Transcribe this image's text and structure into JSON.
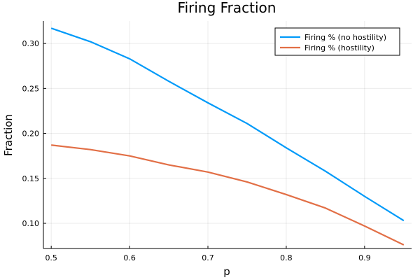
{
  "chart_data": {
    "type": "line",
    "title": "Firing Fraction",
    "xlabel": "p",
    "ylabel": "Fraction",
    "xlim": [
      0.49,
      0.96
    ],
    "ylim": [
      0.072,
      0.325
    ],
    "xticks": [
      0.5,
      0.6,
      0.7,
      0.8,
      0.9
    ],
    "xtick_labels": [
      "0.5",
      "0.6",
      "0.7",
      "0.8",
      "0.9"
    ],
    "yticks": [
      0.1,
      0.15,
      0.2,
      0.25,
      0.3
    ],
    "ytick_labels": [
      "0.10",
      "0.15",
      "0.20",
      "0.25",
      "0.30"
    ],
    "grid": true,
    "legend_position": "top-right",
    "x": [
      0.5,
      0.55,
      0.6,
      0.65,
      0.7,
      0.75,
      0.8,
      0.85,
      0.9,
      0.95
    ],
    "series": [
      {
        "name": "Firing % (no hostility)",
        "color": "#009af9",
        "values": [
          0.317,
          0.302,
          0.283,
          0.258,
          0.234,
          0.211,
          0.184,
          0.158,
          0.13,
          0.103
        ]
      },
      {
        "name": "Firing % (hostility)",
        "color": "#e26f46",
        "values": [
          0.187,
          0.182,
          0.175,
          0.165,
          0.157,
          0.146,
          0.132,
          0.117,
          0.097,
          0.076
        ]
      }
    ]
  }
}
